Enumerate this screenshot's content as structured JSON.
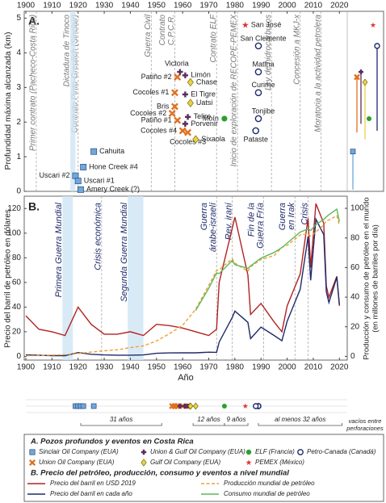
{
  "chart_data": [
    {
      "type": "scatter",
      "label": "A.",
      "ylabel": "Profundidad máxima alcanzada (km)",
      "legend_title": "A. Pozos profundos y eventos en Costa Rica",
      "xlim": [
        1900,
        2023
      ],
      "xticks": [
        1900,
        1910,
        1920,
        1930,
        1940,
        1950,
        1960,
        1970,
        1980,
        1990,
        2000,
        2010,
        2020
      ],
      "ylim": [
        0,
        5.2
      ],
      "yticks": [
        0,
        1,
        2,
        3,
        4,
        5
      ],
      "series": [
        {
          "name": "Sinclair Oil Company (EUA)",
          "color": "#6fa8dc",
          "marker": "square",
          "x": [
            1919,
            1920,
            1921,
            1922,
            1926
          ],
          "values": [
            0.45,
            0.3,
            0.05,
            0.7,
            1.15
          ],
          "labels": [
            "Uscari #2",
            "Uscari #1",
            "Amery Creek (?)",
            "Hone Creek #4",
            "Cahuita"
          ]
        },
        {
          "name": "Union Oil Company (EUA)",
          "color": "#e07020",
          "marker": "x",
          "x": [
            1958,
            1957,
            1957,
            1956,
            1958,
            1960,
            1962
          ],
          "values": [
            3.3,
            2.85,
            2.45,
            2.25,
            2.05,
            1.75,
            1.7
          ],
          "labels": [
            "Patiño #2",
            "Cocoles #1",
            "Bris",
            "Cocoles #2",
            "Patiño #1",
            "Cocoles #4",
            "Cocoles #3"
          ]
        },
        {
          "name": "Union & Gulf Oil Company (EUA)",
          "color": "#5a2d5f",
          "marker": "plus",
          "x": [
            1959,
            1961,
            1961,
            1962,
            1961
          ],
          "values": [
            3.45,
            3.35,
            2.8,
            2.15,
            1.95
          ],
          "labels": [
            "Victoria",
            "Limón",
            "El Tigre",
            "Telire",
            "Porvenir"
          ]
        },
        {
          "name": "Gulf Oil Company (EUA)",
          "color": "#e8d24a",
          "marker": "diamond",
          "x": [
            1963,
            1963,
            1965
          ],
          "values": [
            3.15,
            2.55,
            1.5
          ],
          "labels": [
            "Chase",
            "Uatsi",
            "Sixaola"
          ]
        },
        {
          "name": "ELF (Francia)",
          "color": "#2ca02c",
          "marker": "circle",
          "x": [
            1976
          ],
          "values": [
            2.1
          ],
          "labels": [
            "Moín"
          ]
        },
        {
          "name": "PEMEX (México)",
          "color": "#e03030",
          "marker": "star",
          "x": [
            1984
          ],
          "values": [
            4.8
          ],
          "labels": [
            "San José"
          ]
        },
        {
          "name": "Petro-Canada (Canadá)",
          "color": "#1f2a6b",
          "marker": "circle-open",
          "x": [
            1989,
            1989,
            1989,
            1989,
            1988
          ],
          "values": [
            4.2,
            3.45,
            2.85,
            2.1,
            1.75
          ],
          "labels": [
            "San Clemente",
            "Matina",
            "Curime",
            "Tonjibe",
            "Pataste"
          ]
        }
      ],
      "events": [
        {
          "lines": [
            "Primer contrato (Pacheco-Costa Rica)"
          ],
          "year": 1904
        },
        {
          "lines": [
            "Contrato Pinto-Greulich (Sinclair)"
          ],
          "year": 1920
        },
        {
          "lines": [
            "Dictadura de Tinoco"
          ],
          "start": 1917,
          "end": 1919
        },
        {
          "lines": [
            "Guerra Civil"
          ],
          "year": 1948
        },
        {
          "lines": [
            "Contrato",
            "C.P.C.R."
          ],
          "year": 1957
        },
        {
          "lines": [
            "Contrato ELF"
          ],
          "year": 1973
        },
        {
          "lines": [
            "Inicio de exploración de RECOPE-PEMEX"
          ],
          "year": 1981
        },
        {
          "lines": [
            "Ley de hidrocarburos"
          ],
          "year": 1994
        },
        {
          "lines": [
            "Concesión a MKJ-x"
          ],
          "year": 2005
        },
        {
          "lines": [
            "Moratoria a la actividad petrolera"
          ],
          "year": 2013
        }
      ]
    },
    {
      "type": "line",
      "label": "B.",
      "ylabel": "Precio del barril de petróleo en dólares",
      "y2label": [
        "Producción y consumo de petróleo en el mundo",
        "(en millones de barriles por día)"
      ],
      "xlabel": "Año",
      "legend_title": "B. Precio del petróleo, producción, consumo y eventos a nivel mundial",
      "xlim": [
        1900,
        2023
      ],
      "xticks": [
        1900,
        1910,
        1920,
        1930,
        1940,
        1950,
        1960,
        1970,
        1980,
        1990,
        2000,
        2010,
        2020
      ],
      "ylim": [
        -3,
        130
      ],
      "yticks": [
        0,
        20,
        40,
        60,
        80,
        100,
        120
      ],
      "y2lim": [
        -2.5,
        108.2
      ],
      "y2ticks": [
        0,
        20,
        40,
        60,
        80,
        100
      ],
      "x": [
        1900,
        1905,
        1910,
        1915,
        1920,
        1925,
        1930,
        1935,
        1940,
        1945,
        1950,
        1955,
        1960,
        1965,
        1970,
        1973,
        1974,
        1979,
        1980,
        1985,
        1986,
        1990,
        1995,
        1998,
        2000,
        2005,
        2008,
        2009,
        2011,
        2014,
        2015,
        2016,
        2019,
        2020
      ],
      "series": [
        {
          "name": "Precio del barril en USD 2019",
          "color": "#b22222",
          "dashed": false,
          "values": [
            33,
            22,
            20,
            17,
            40,
            26,
            18,
            18,
            20,
            17,
            26,
            25,
            23,
            20,
            17,
            22,
            60,
            104,
            113,
            66,
            34,
            43,
            28,
            20,
            41,
            67,
            112,
            72,
            124,
            108,
            57,
            48,
            65,
            41
          ]
        },
        {
          "name": "Precio del barril en cada año",
          "color": "#1f2a6b",
          "dashed": false,
          "values": [
            1.2,
            0.9,
            0.6,
            0.6,
            3.1,
            1.7,
            1.2,
            1,
            1.0,
            1.2,
            2.5,
            2.8,
            2.9,
            2.9,
            3.4,
            3.3,
            11.6,
            31.6,
            36.8,
            27.6,
            14.4,
            23.7,
            17.0,
            12.7,
            28.5,
            54.5,
            97.3,
            61.7,
            111.3,
            98.9,
            52.4,
            43.7,
            64.2,
            41.8
          ]
        },
        {
          "name": "Producción mundial de petróleo",
          "color": "#f0a030",
          "dashed": true,
          "axis": "y2",
          "values": [
            0.4,
            0.6,
            0.9,
            1.2,
            1.9,
            2.9,
            3.8,
            4.5,
            5.9,
            7.1,
            10.4,
            15.4,
            21,
            31.8,
            48,
            58,
            58.5,
            66,
            63,
            57.5,
            60.5,
            65.5,
            68,
            73.6,
            75,
            82,
            82.8,
            81.3,
            84,
            88.8,
            91.7,
            92.1,
            95,
            88.4
          ]
        },
        {
          "name": "Consumo mundial de petróleo",
          "color": "#5cb85c",
          "dashed": false,
          "axis": "y2",
          "values": [
            null,
            null,
            null,
            null,
            null,
            null,
            null,
            null,
            null,
            null,
            null,
            null,
            null,
            31,
            46,
            56.4,
            55.9,
            64.8,
            61.9,
            59.5,
            61.1,
            66.4,
            70.2,
            73.5,
            76.5,
            84,
            86,
            85,
            89,
            92.5,
            94.2,
            95.7,
            99.5,
            91
          ]
        }
      ],
      "events": [
        {
          "lines": [
            "Primera Guerra Mundial"
          ],
          "start": 1914,
          "end": 1918
        },
        {
          "lines": [
            "Crisis económica"
          ],
          "year": 1929
        },
        {
          "lines": [
            "Segunda Guerra Mundial"
          ],
          "start": 1939,
          "end": 1945
        },
        {
          "lines": [
            "Guerra",
            "árabe-israelí"
          ],
          "year": 1973
        },
        {
          "lines": [
            "Rev. iraní"
          ],
          "year": 1979
        },
        {
          "lines": [
            "Fin de la",
            "Guerra Fría"
          ],
          "year": 1991
        },
        {
          "lines": [
            "Guerra",
            "en Irak"
          ],
          "year": 2003
        },
        {
          "lines": [
            "Crisis"
          ],
          "year": 2008
        }
      ]
    }
  ],
  "timeline": {
    "note": [
      "vacíos entre",
      "perforaciones"
    ],
    "gaps": [
      {
        "label": "31 años",
        "from": 1921,
        "to": 1952
      },
      {
        "label": "12 años",
        "from": 1964,
        "to": 1976
      },
      {
        "label": "9 años",
        "from": 1976,
        "to": 1985
      },
      {
        "label": "al menos 32 años",
        "from": 1989,
        "to": 2021
      }
    ]
  }
}
